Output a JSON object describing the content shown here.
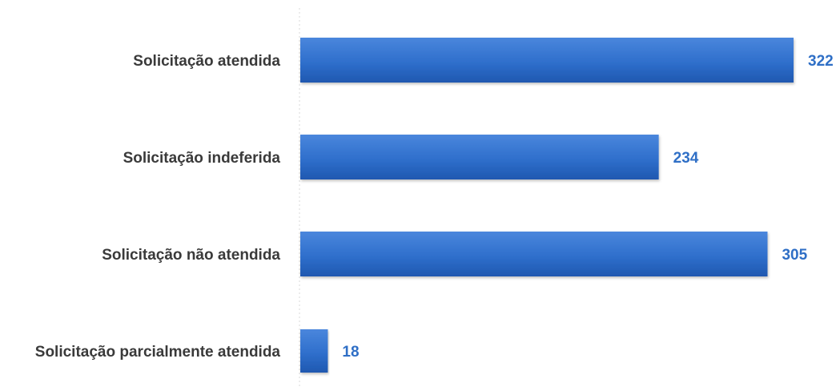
{
  "chart_data": {
    "type": "bar",
    "orientation": "horizontal",
    "categories": [
      "Solicitação atendida",
      "Solicitação indeferida",
      "Solicitação não atendida",
      "Solicitação parcialmente atendida"
    ],
    "values": [
      322,
      234,
      305,
      18
    ],
    "data_labels": [
      "322",
      "234",
      "305",
      "18"
    ],
    "title": "",
    "xlabel": "",
    "ylabel": "",
    "xlim": [
      0,
      322
    ],
    "grid": false,
    "legend": "none",
    "colors": {
      "bar": "#2f6fcc",
      "bar_light": "#4a86dc",
      "bar_dark": "#1f58b0",
      "value_label": "#2f6fc6",
      "category_label": "#3a3a3a",
      "axis_line": "#d9d9d9"
    }
  }
}
